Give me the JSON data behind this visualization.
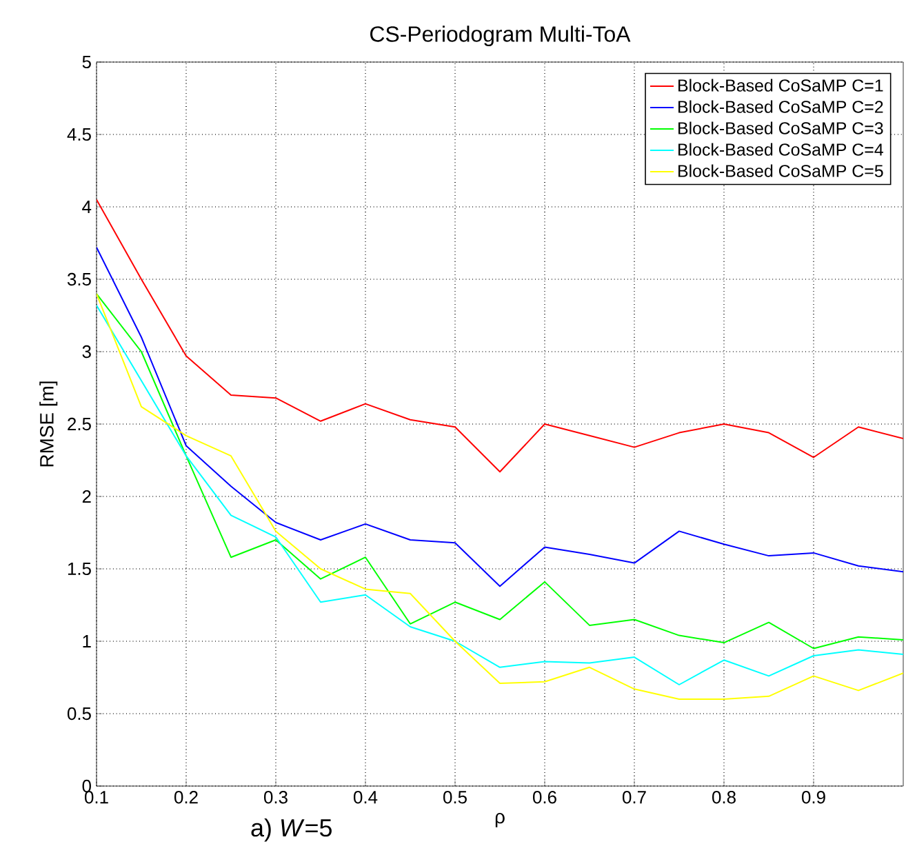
{
  "chart_data": {
    "type": "line",
    "title": "CS-Periodogram Multi-ToA",
    "xlabel": "ρ",
    "ylabel": "RMSE [m]",
    "annotations": [
      "a)  *W*=5"
    ],
    "x": [
      0.1,
      0.15,
      0.2,
      0.25,
      0.3,
      0.35,
      0.4,
      0.45,
      0.5,
      0.55,
      0.6,
      0.65,
      0.7,
      0.75,
      0.8,
      0.85,
      0.9,
      0.95,
      1.0
    ],
    "series": [
      {
        "name": "Block-Based CoSaMP C=1",
        "color": "#ff0000",
        "values": [
          4.05,
          3.5,
          2.97,
          2.7,
          2.68,
          2.52,
          2.64,
          2.53,
          2.48,
          2.17,
          2.5,
          2.42,
          2.34,
          2.44,
          2.5,
          2.44,
          2.27,
          2.48,
          2.4
        ]
      },
      {
        "name": "Block-Based CoSaMP C=2",
        "color": "#0000ff",
        "values": [
          3.72,
          3.1,
          2.35,
          2.07,
          1.82,
          1.7,
          1.81,
          1.7,
          1.68,
          1.38,
          1.65,
          1.6,
          1.54,
          1.76,
          1.67,
          1.59,
          1.61,
          1.52,
          1.48
        ]
      },
      {
        "name": "Block-Based CoSaMP C=3",
        "color": "#00ff00",
        "values": [
          3.4,
          3.0,
          2.28,
          1.58,
          1.7,
          1.43,
          1.58,
          1.12,
          1.27,
          1.15,
          1.41,
          1.11,
          1.15,
          1.04,
          0.99,
          1.13,
          0.95,
          1.03,
          1.01
        ]
      },
      {
        "name": "Block-Based CoSaMP C=4",
        "color": "#00ffff",
        "values": [
          3.32,
          2.8,
          2.28,
          1.87,
          1.72,
          1.27,
          1.32,
          1.1,
          1.0,
          0.82,
          0.86,
          0.85,
          0.89,
          0.7,
          0.87,
          0.76,
          0.9,
          0.94,
          0.91
        ]
      },
      {
        "name": "Block-Based CoSaMP C=5",
        "color": "#ffff00",
        "values": [
          3.4,
          2.62,
          2.42,
          2.28,
          1.76,
          1.5,
          1.36,
          1.33,
          1.0,
          0.71,
          0.72,
          0.82,
          0.67,
          0.6,
          0.6,
          0.62,
          0.76,
          0.66,
          0.78
        ]
      }
    ],
    "xlim": [
      0.1,
      1.0
    ],
    "xticks": [
      0.1,
      0.2,
      0.3,
      0.4,
      0.5,
      0.6,
      0.7,
      0.8,
      0.9
    ],
    "ylim": [
      0,
      5
    ],
    "yticks": [
      0,
      0.5,
      1,
      1.5,
      2,
      2.5,
      3,
      3.5,
      4,
      4.5,
      5
    ],
    "grid": true,
    "legend": "top right",
    "marker": "none",
    "line_style": "solid"
  }
}
